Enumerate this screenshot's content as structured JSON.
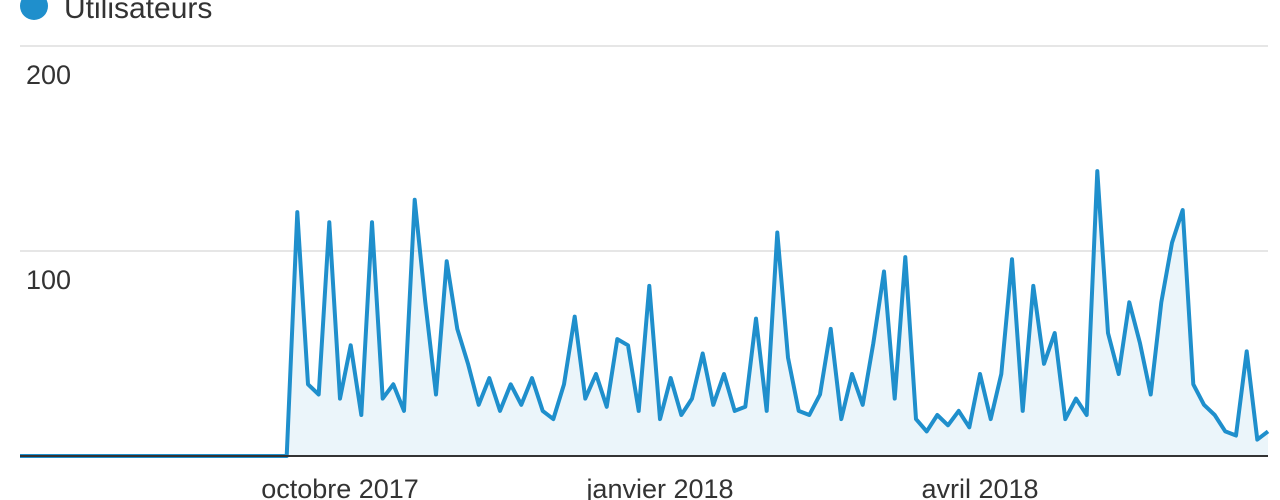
{
  "chart_data": {
    "type": "line",
    "series": [
      {
        "name": "Utilisateurs",
        "color": "#1f8fcc",
        "values": [
          0,
          0,
          0,
          0,
          0,
          0,
          0,
          0,
          0,
          0,
          0,
          0,
          0,
          0,
          0,
          0,
          0,
          0,
          0,
          0,
          0,
          0,
          0,
          0,
          0,
          0,
          119,
          35,
          30,
          114,
          28,
          54,
          20,
          114,
          28,
          35,
          22,
          125,
          75,
          30,
          95,
          62,
          45,
          25,
          38,
          22,
          35,
          25,
          38,
          22,
          18,
          35,
          68,
          28,
          40,
          24,
          57,
          54,
          22,
          83,
          18,
          38,
          20,
          28,
          50,
          25,
          40,
          22,
          24,
          67,
          22,
          109,
          48,
          22,
          20,
          30,
          62,
          18,
          40,
          25,
          55,
          90,
          28,
          97,
          18,
          12,
          20,
          15,
          22,
          14,
          40,
          18,
          40,
          96,
          22,
          83,
          45,
          60,
          18,
          28,
          20,
          139,
          60,
          40,
          75,
          55,
          30,
          75,
          104,
          120,
          35,
          25,
          20,
          12,
          10,
          51,
          8,
          12
        ]
      }
    ],
    "categories": [
      null,
      null,
      null,
      null,
      null,
      null,
      null,
      null,
      null,
      null,
      null,
      null,
      null,
      null,
      null,
      null,
      null,
      null,
      null,
      null,
      null,
      null,
      null,
      null,
      null,
      null,
      null,
      null,
      null,
      null,
      "octobre 2017",
      null,
      null,
      null,
      null,
      null,
      null,
      null,
      null,
      null,
      null,
      null,
      null,
      null,
      null,
      null,
      null,
      null,
      null,
      null,
      null,
      null,
      null,
      null,
      null,
      null,
      null,
      null,
      null,
      null,
      "janvier 2018",
      null,
      null,
      null,
      null,
      null,
      null,
      null,
      null,
      null,
      null,
      null,
      null,
      null,
      null,
      null,
      null,
      null,
      null,
      null,
      null,
      null,
      null,
      null,
      null,
      null,
      null,
      null,
      null,
      null,
      "avril 2018",
      null,
      null,
      null,
      null,
      null,
      null,
      null,
      null,
      null,
      null,
      null,
      null,
      null,
      null,
      null,
      null,
      null,
      null,
      null,
      null,
      null,
      null,
      null,
      null,
      null,
      null,
      null
    ],
    "ylim": [
      0,
      200
    ],
    "yticks": [
      100,
      200
    ],
    "grid": true
  }
}
